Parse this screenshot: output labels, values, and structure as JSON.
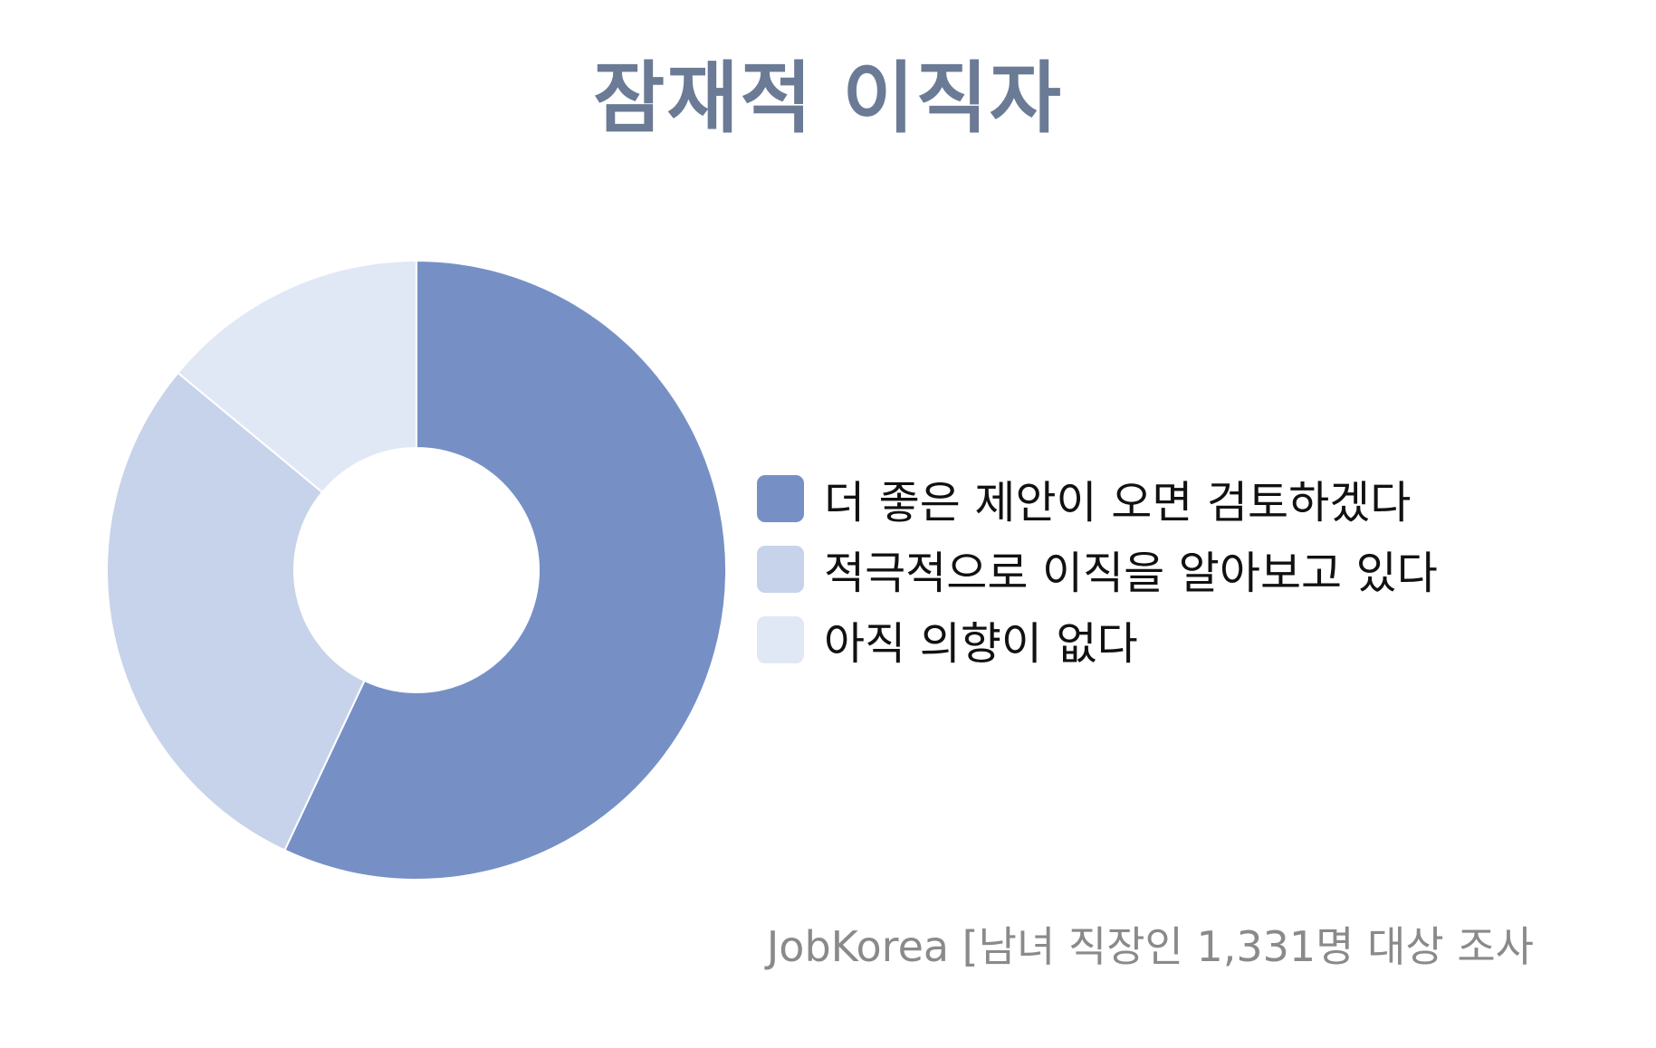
{
  "chart_data": {
    "type": "pie",
    "variant": "donut",
    "title": "잠재적 이직자",
    "categories": [
      "더 좋은 제안이 오면 검토하겠다",
      "적극적으로 이직을 알아보고 있다",
      "아직 의향이 없다"
    ],
    "values": [
      57,
      29,
      14
    ],
    "colors": [
      "#7690c6",
      "#c7d3ea",
      "#e1e8f5"
    ],
    "legend_position": "right",
    "source": "JobKorea [남녀 직장인 1,331명 대상 조사"
  }
}
